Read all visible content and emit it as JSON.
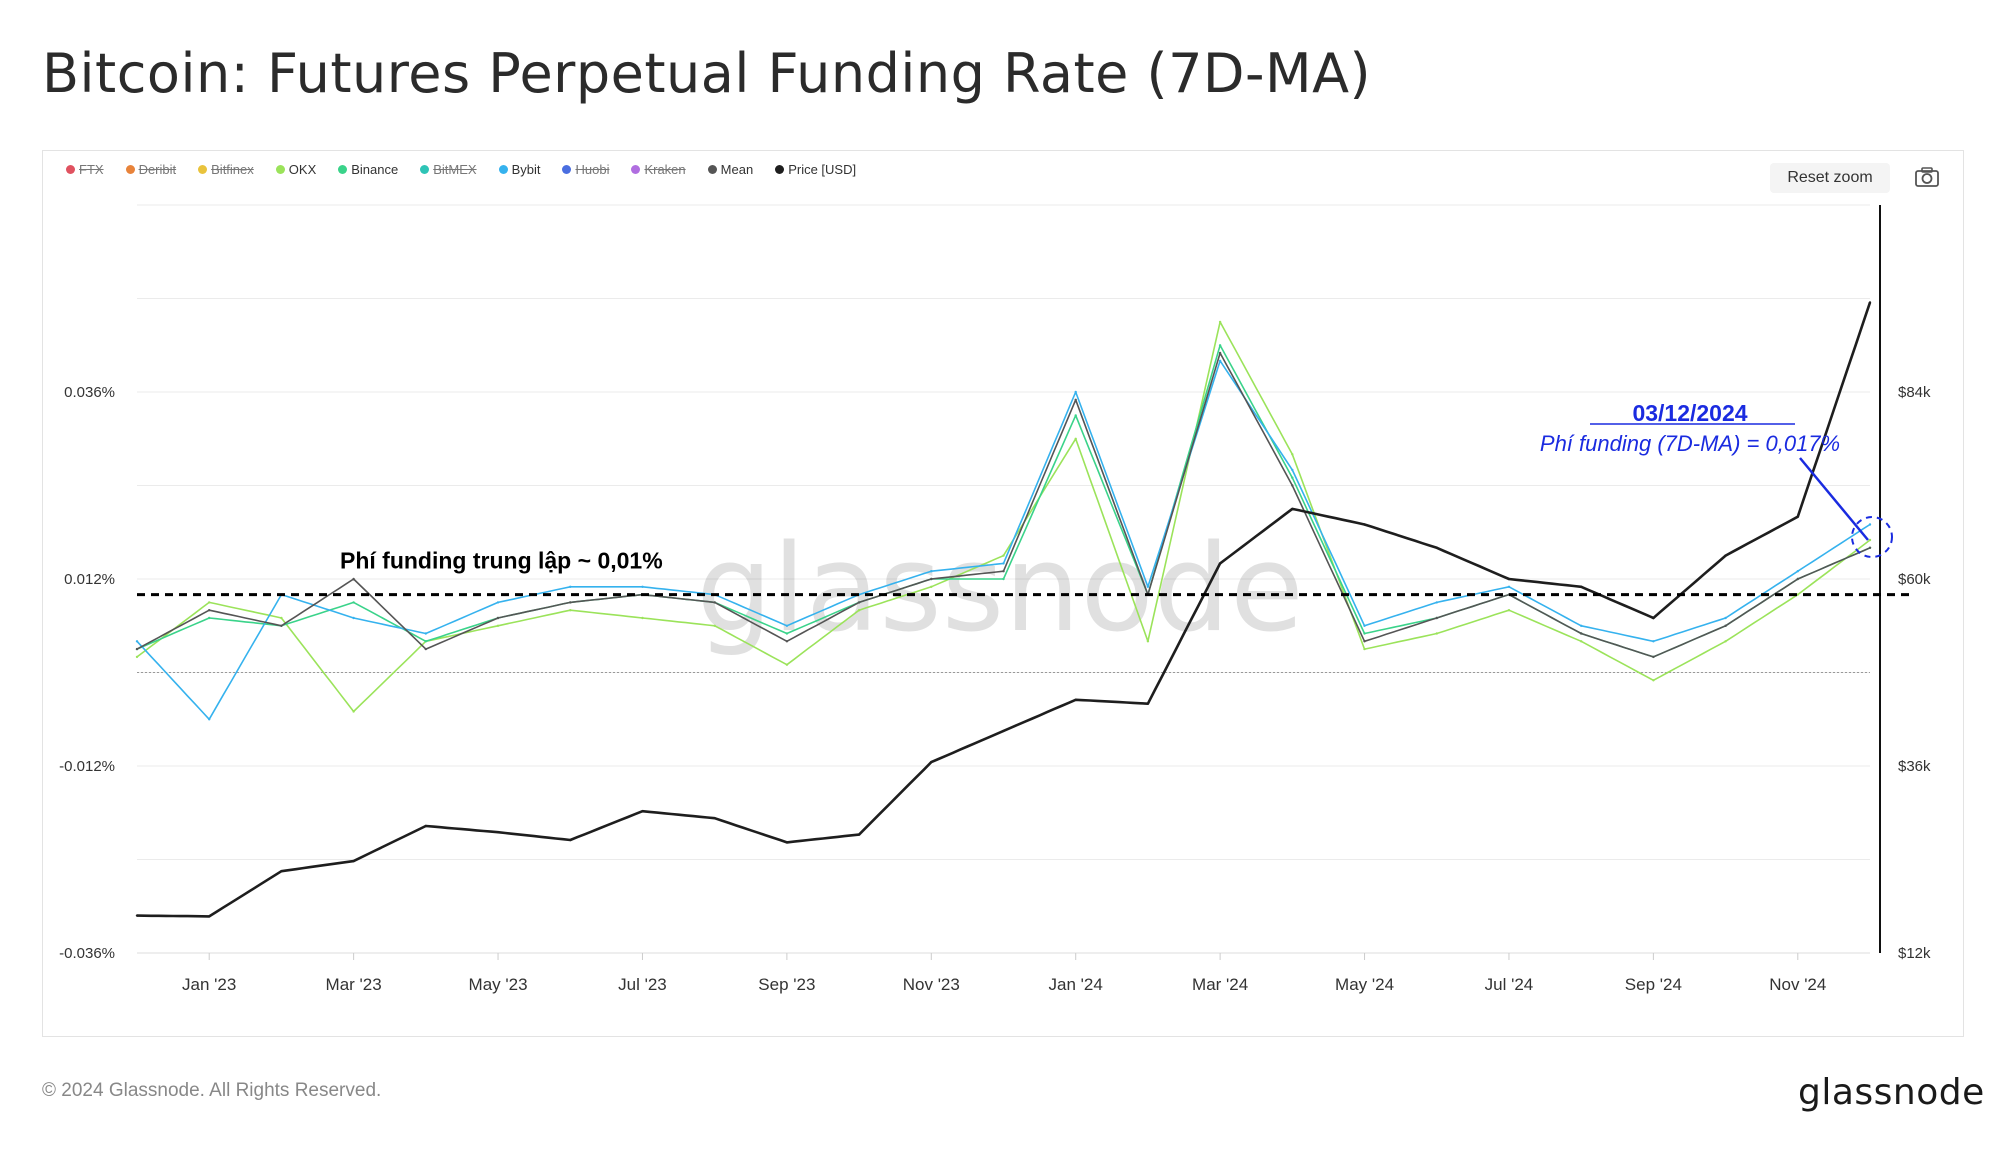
{
  "title": "Bitcoin: Futures Perpetual Funding Rate (7D-MA)",
  "legend": [
    {
      "name": "FTX",
      "color": "#e05260",
      "active": false
    },
    {
      "name": "Deribit",
      "color": "#e8833a",
      "active": false
    },
    {
      "name": "Bitfinex",
      "color": "#e9c33c",
      "active": false
    },
    {
      "name": "OKX",
      "color": "#9be35a",
      "active": true
    },
    {
      "name": "Binance",
      "color": "#3ad38a",
      "active": true
    },
    {
      "name": "BitMEX",
      "color": "#2ec4b6",
      "active": false
    },
    {
      "name": "Bybit",
      "color": "#35b2ee",
      "active": true
    },
    {
      "name": "Huobi",
      "color": "#4a6ee0",
      "active": false
    },
    {
      "name": "Kraken",
      "color": "#b06ee0",
      "active": false
    },
    {
      "name": "Mean",
      "color": "#555555",
      "active": true
    },
    {
      "name": "Price [USD]",
      "color": "#1e1e1e",
      "active": true
    }
  ],
  "reset_zoom_label": "Reset zoom",
  "camera_icon": "camera-icon",
  "watermark": "glassnode",
  "footer": {
    "copyright": "© 2024 Glassnode. All Rights Reserved.",
    "logo": "glassnode"
  },
  "annotations": {
    "neutral_label": "Phí funding trung lập ~ 0,01%",
    "date_label": "03/12/2024",
    "rate_label": "Phí funding (7D-MA) = 0,017%"
  },
  "chart_data": {
    "type": "line",
    "x_ticks": [
      "Jan '23",
      "Mar '23",
      "May '23",
      "Jul '23",
      "Sep '23",
      "Nov '23",
      "Jan '24",
      "Mar '24",
      "May '24",
      "Jul '24",
      "Sep '24",
      "Nov '24"
    ],
    "left_axis": {
      "ticks": [
        "0.036%",
        "0.012%",
        "-0.012%",
        "-0.036%"
      ],
      "range": [
        -0.036,
        0.06
      ]
    },
    "right_axis": {
      "ticks": [
        "$84k",
        "$60k",
        "$36k",
        "$12k"
      ],
      "range": [
        12000,
        108000
      ]
    },
    "neutral_level": 0.01,
    "dates": [
      "2022-12",
      "2023-01",
      "2023-02",
      "2023-03",
      "2023-04",
      "2023-05",
      "2023-06",
      "2023-07",
      "2023-08",
      "2023-09",
      "2023-10",
      "2023-11",
      "2023-12",
      "2024-01",
      "2024-02",
      "2024-03",
      "2024-04",
      "2024-05",
      "2024-06",
      "2024-07",
      "2024-08",
      "2024-09",
      "2024-10",
      "2024-11",
      "2024-12"
    ],
    "series": [
      {
        "name": "Price [USD]",
        "axis": "right",
        "color": "#1e1e1e",
        "values": [
          16800,
          16700,
          22500,
          23800,
          28300,
          27500,
          26500,
          30200,
          29300,
          26200,
          27200,
          36500,
          40500,
          44500,
          44000,
          62000,
          69000,
          67000,
          64000,
          60000,
          59000,
          55000,
          63000,
          68000,
          95500
        ]
      },
      {
        "name": "Mean",
        "axis": "left",
        "color": "#555555",
        "values": [
          0.003,
          0.008,
          0.006,
          0.012,
          0.003,
          0.007,
          0.009,
          0.01,
          0.009,
          0.004,
          0.009,
          0.012,
          0.013,
          0.035,
          0.01,
          0.041,
          0.024,
          0.004,
          0.007,
          0.01,
          0.005,
          0.002,
          0.006,
          0.012,
          0.016
        ]
      },
      {
        "name": "OKX",
        "axis": "left",
        "color": "#9be35a",
        "values": [
          0.002,
          0.009,
          0.007,
          -0.005,
          0.004,
          0.006,
          0.008,
          0.007,
          0.006,
          0.001,
          0.008,
          0.011,
          0.015,
          0.03,
          0.004,
          0.045,
          0.028,
          0.003,
          0.005,
          0.008,
          0.004,
          -0.001,
          0.004,
          0.01,
          0.017
        ]
      },
      {
        "name": "Binance",
        "axis": "left",
        "color": "#3ad38a",
        "values": [
          0.003,
          0.007,
          0.006,
          0.009,
          0.004,
          0.007,
          0.009,
          0.01,
          0.009,
          0.005,
          0.009,
          0.012,
          0.012,
          0.033,
          0.01,
          0.042,
          0.025,
          0.005,
          0.007,
          0.01,
          0.005,
          0.002,
          0.006,
          0.012,
          0.016
        ]
      },
      {
        "name": "Bybit",
        "axis": "left",
        "color": "#35b2ee",
        "values": [
          0.004,
          -0.006,
          0.01,
          0.007,
          0.005,
          0.009,
          0.011,
          0.011,
          0.01,
          0.006,
          0.01,
          0.013,
          0.014,
          0.036,
          0.011,
          0.04,
          0.026,
          0.006,
          0.009,
          0.011,
          0.006,
          0.004,
          0.007,
          0.013,
          0.019
        ]
      }
    ]
  }
}
